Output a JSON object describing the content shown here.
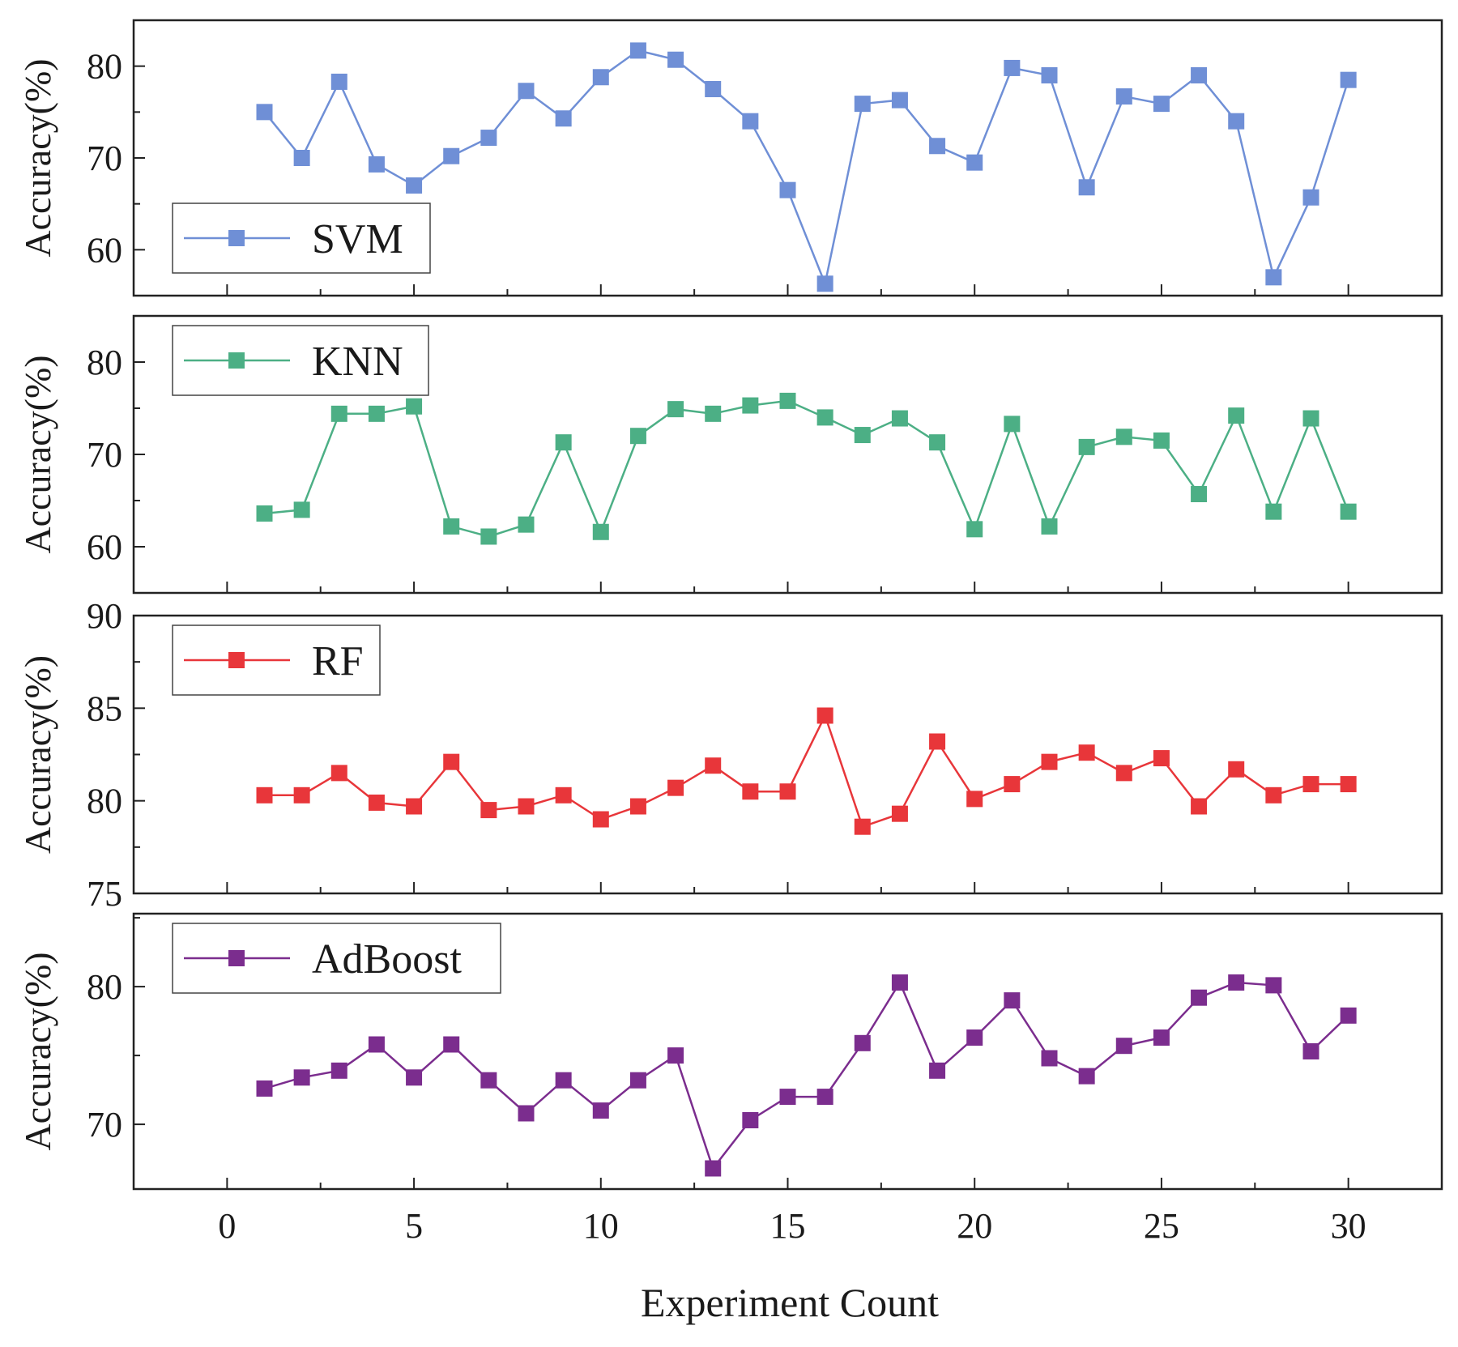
{
  "chart_data": {
    "type": "line",
    "xlabel": "Experiment Count",
    "xlim": [
      -2.5,
      32.5
    ],
    "xticks": [
      0,
      5,
      10,
      15,
      20,
      25,
      30
    ],
    "x": [
      1,
      2,
      3,
      4,
      5,
      6,
      7,
      8,
      9,
      10,
      11,
      12,
      13,
      14,
      15,
      16,
      17,
      18,
      19,
      20,
      21,
      22,
      23,
      24,
      25,
      26,
      27,
      28,
      29,
      30
    ],
    "panels": [
      {
        "name": "SVM",
        "ylabel": "Accuracy(%)",
        "color": "#6f8fd6",
        "ylim": [
          55,
          85
        ],
        "yticks": [
          60,
          70,
          80
        ],
        "legend_position": "bottom-left",
        "values": [
          75.0,
          70.0,
          78.3,
          69.3,
          67.0,
          70.2,
          72.2,
          77.3,
          74.3,
          78.8,
          81.7,
          80.7,
          77.5,
          74.0,
          66.5,
          56.3,
          75.9,
          76.3,
          71.3,
          69.5,
          79.8,
          79.0,
          66.8,
          76.7,
          75.9,
          79.0,
          74.0,
          57.0,
          65.7,
          78.5
        ]
      },
      {
        "name": "KNN",
        "ylabel": "Accuracy(%)",
        "color": "#4caf85",
        "ylim": [
          55,
          85
        ],
        "yticks": [
          60,
          70,
          80
        ],
        "legend_position": "top-left",
        "values": [
          63.6,
          64.0,
          74.4,
          74.4,
          75.2,
          62.2,
          61.1,
          62.4,
          71.3,
          61.6,
          72.0,
          74.9,
          74.4,
          75.3,
          75.8,
          74.0,
          72.1,
          73.9,
          71.3,
          61.9,
          73.3,
          62.2,
          70.8,
          71.9,
          71.5,
          65.7,
          74.2,
          63.8,
          73.9,
          63.8
        ]
      },
      {
        "name": "RF",
        "ylabel": "Accuracy(%)",
        "color": "#e8363a",
        "ylim": [
          75,
          90
        ],
        "yticks": [
          75,
          80,
          85,
          90
        ],
        "legend_position": "top-left",
        "values": [
          80.3,
          80.3,
          81.5,
          79.9,
          79.7,
          82.1,
          79.5,
          79.7,
          80.3,
          79.0,
          79.7,
          80.7,
          81.9,
          80.5,
          80.5,
          84.6,
          78.6,
          79.3,
          83.2,
          80.1,
          80.9,
          82.1,
          82.6,
          81.5,
          82.3,
          79.7,
          81.7,
          80.3,
          80.9,
          80.9
        ]
      },
      {
        "name": "AdBoost",
        "ylabel": "Accuracy(%)",
        "color": "#7b2d8e",
        "ylim": [
          65.3,
          85.3
        ],
        "yticks": [
          70,
          80
        ],
        "legend_position": "top-left",
        "values": [
          72.6,
          73.4,
          73.9,
          75.8,
          73.4,
          75.8,
          73.2,
          70.8,
          73.2,
          71.0,
          73.2,
          75.0,
          66.8,
          70.3,
          72.0,
          72.0,
          75.9,
          80.3,
          73.9,
          76.3,
          79.0,
          74.8,
          73.5,
          75.7,
          76.3,
          79.2,
          80.3,
          80.1,
          75.3,
          77.9
        ]
      }
    ]
  }
}
